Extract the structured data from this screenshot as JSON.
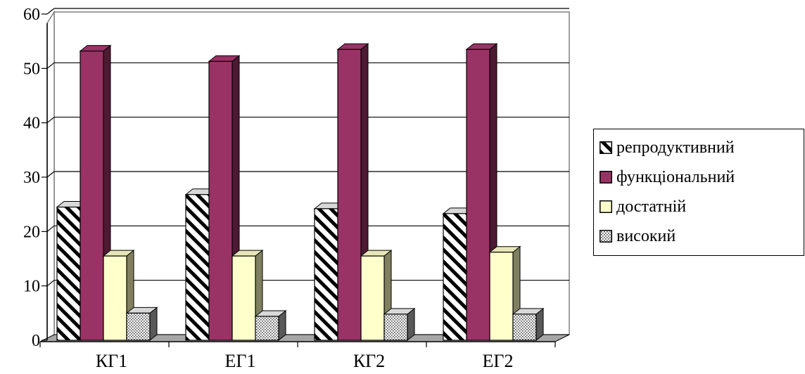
{
  "colors": {
    "reproductive_fill": "#ffffff",
    "reproductive_stripe": "#000000",
    "functional_fill": "#993366",
    "sufficient_fill": "#ffffcc",
    "high_fill": "#ffffff",
    "floor": "#a6a6a6",
    "gridline": "#000000"
  },
  "chart_data": {
    "type": "bar",
    "categories": [
      "КГ1",
      "ЕГ1",
      "КГ2",
      "ЕГ2"
    ],
    "series": [
      {
        "name": "репродуктивний",
        "values": [
          24.5,
          26.8,
          24.2,
          23.3
        ],
        "pattern": "diagonal-stripes"
      },
      {
        "name": "функціональний",
        "values": [
          53.2,
          51.3,
          53.5,
          53.5
        ],
        "pattern": "solid"
      },
      {
        "name": "достатній",
        "values": [
          15.5,
          15.5,
          15.5,
          16.2
        ],
        "pattern": "solid"
      },
      {
        "name": "високий",
        "values": [
          5.0,
          4.4,
          4.8,
          4.8
        ],
        "pattern": "dots"
      }
    ],
    "yticks": [
      "0",
      "10",
      "20",
      "30",
      "40",
      "50",
      "60"
    ],
    "ylim": [
      0,
      60
    ],
    "title": "",
    "xlabel": "",
    "ylabel": "",
    "grid": true,
    "legend_position": "right",
    "style": "3d-clustered-columns"
  }
}
